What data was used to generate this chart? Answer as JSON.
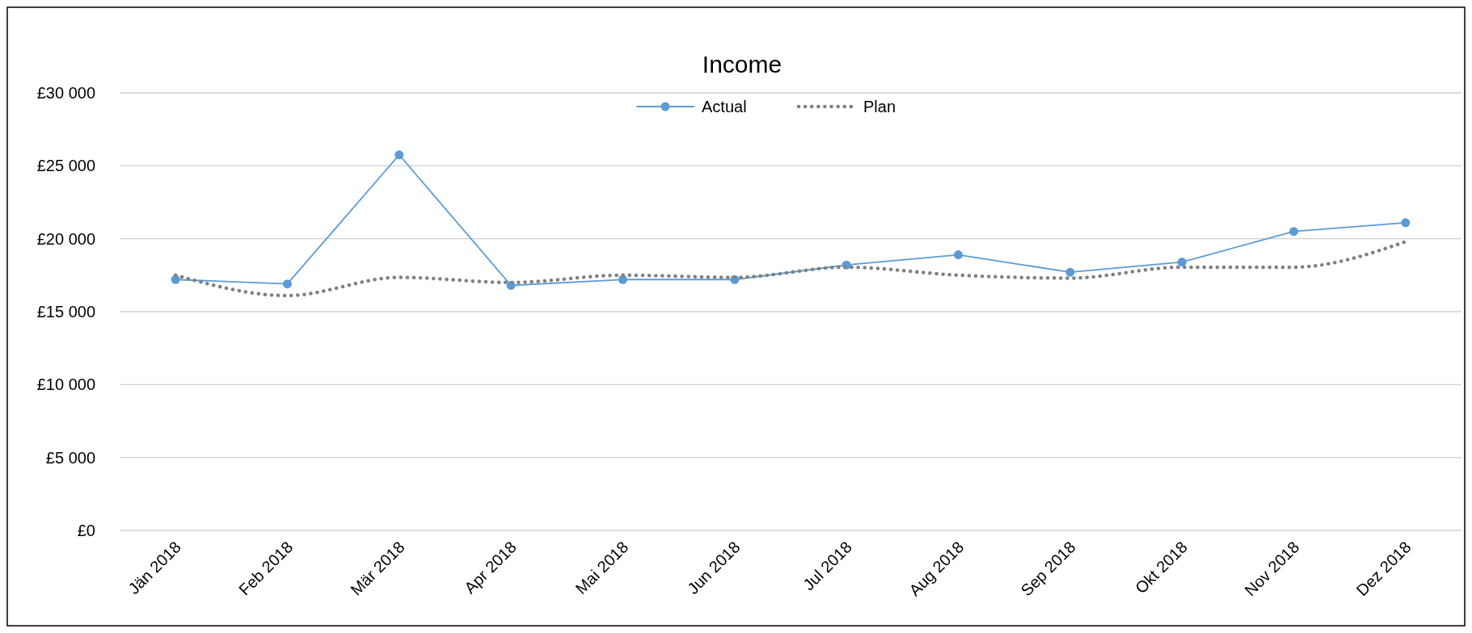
{
  "chart_data": {
    "type": "line",
    "title": "Income",
    "categories": [
      "Jän 2018",
      "Feb 2018",
      "Mär 2018",
      "Apr 2018",
      "Mai 2018",
      "Jun 2018",
      "Jul 2018",
      "Aug 2018",
      "Sep 2018",
      "Okt 2018",
      "Nov 2018",
      "Dez 2018"
    ],
    "series": [
      {
        "name": "Actual",
        "color": "#5b9bd5",
        "marker": "circle",
        "line_style": "solid",
        "values": [
          17200,
          16900,
          25750,
          16800,
          17200,
          17200,
          18200,
          18900,
          17700,
          18400,
          20500,
          21100
        ]
      },
      {
        "name": "Plan",
        "color": "#808080",
        "marker": "none",
        "line_style": "dotted",
        "values": [
          17500,
          16100,
          17350,
          17000,
          17500,
          17350,
          18050,
          17500,
          17300,
          18050,
          18050,
          19800
        ]
      }
    ],
    "ylim": [
      0,
      30000
    ],
    "yticks": [
      {
        "value": 0,
        "label": "£0"
      },
      {
        "value": 5000,
        "label": "£5 000"
      },
      {
        "value": 10000,
        "label": "£10 000"
      },
      {
        "value": 15000,
        "label": "£15 000"
      },
      {
        "value": 20000,
        "label": "£20 000"
      },
      {
        "value": 25000,
        "label": "£25 000"
      },
      {
        "value": 30000,
        "label": "£30 000"
      }
    ],
    "grid": "y",
    "legend": "top"
  }
}
